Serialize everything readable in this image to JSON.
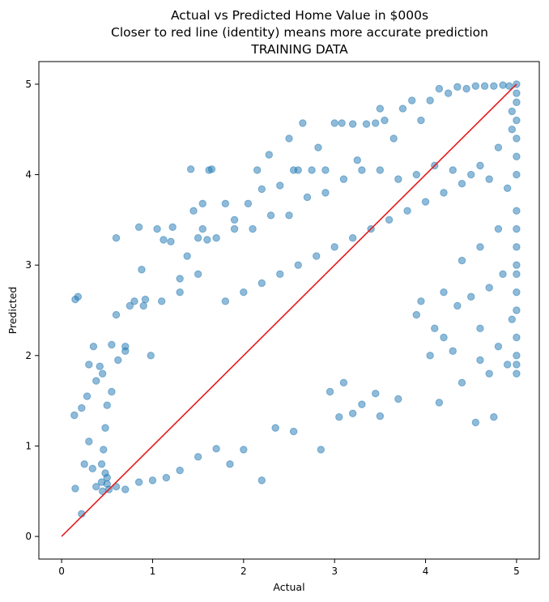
{
  "chart_data": {
    "type": "scatter",
    "title": [
      "Actual vs Predicted Home Value in $000s",
      "Closer to red line (identity) means more accurate prediction",
      "TRAINING DATA"
    ],
    "xlabel": "Actual",
    "ylabel": "Predicted",
    "xlim": [
      -0.25,
      5.25
    ],
    "ylim": [
      -0.25,
      5.25
    ],
    "xticks": [
      0,
      1,
      2,
      3,
      4,
      5
    ],
    "yticks": [
      0,
      1,
      2,
      3,
      4,
      5
    ],
    "grid": false,
    "point_color": "#1f77b4",
    "point_alpha": 0.5,
    "line_color": "#e41a1c",
    "identity_line": {
      "x": [
        0,
        5
      ],
      "y": [
        0,
        5
      ]
    },
    "series": [
      {
        "type": "scatter",
        "points": [
          [
            0.15,
            2.62
          ],
          [
            0.18,
            2.65
          ],
          [
            0.22,
            0.25
          ],
          [
            0.15,
            0.53
          ],
          [
            0.25,
            0.8
          ],
          [
            0.28,
            1.55
          ],
          [
            0.22,
            1.42
          ],
          [
            0.14,
            1.34
          ],
          [
            0.3,
            1.9
          ],
          [
            0.35,
            2.1
          ],
          [
            0.38,
            1.72
          ],
          [
            0.42,
            1.88
          ],
          [
            0.45,
            1.8
          ],
          [
            0.3,
            1.05
          ],
          [
            0.34,
            0.75
          ],
          [
            0.38,
            0.55
          ],
          [
            0.44,
            0.6
          ],
          [
            0.48,
            0.7
          ],
          [
            0.52,
            0.52
          ],
          [
            0.6,
            3.3
          ],
          [
            0.6,
            2.45
          ],
          [
            0.55,
            2.12
          ],
          [
            0.7,
            2.05
          ],
          [
            0.75,
            2.55
          ],
          [
            0.8,
            2.6
          ],
          [
            0.85,
            3.42
          ],
          [
            0.88,
            2.95
          ],
          [
            0.92,
            2.62
          ],
          [
            0.98,
            2.0
          ],
          [
            1.05,
            3.4
          ],
          [
            1.12,
            3.28
          ],
          [
            1.2,
            3.26
          ],
          [
            1.22,
            3.42
          ],
          [
            1.3,
            2.85
          ],
          [
            1.38,
            3.1
          ],
          [
            1.45,
            3.6
          ],
          [
            1.5,
            3.3
          ],
          [
            1.55,
            3.4
          ],
          [
            1.6,
            3.28
          ],
          [
            1.62,
            4.05
          ],
          [
            1.65,
            4.06
          ],
          [
            1.42,
            4.06
          ],
          [
            1.55,
            3.68
          ],
          [
            1.8,
            3.68
          ],
          [
            1.9,
            3.5
          ],
          [
            2.05,
            3.68
          ],
          [
            2.15,
            4.05
          ],
          [
            2.2,
            3.84
          ],
          [
            2.28,
            4.22
          ],
          [
            2.4,
            3.88
          ],
          [
            2.5,
            4.4
          ],
          [
            2.55,
            4.05
          ],
          [
            2.6,
            4.05
          ],
          [
            2.65,
            4.57
          ],
          [
            2.75,
            4.05
          ],
          [
            2.82,
            4.3
          ],
          [
            2.9,
            4.05
          ],
          [
            3.0,
            4.57
          ],
          [
            3.08,
            4.57
          ],
          [
            3.2,
            4.56
          ],
          [
            3.25,
            4.16
          ],
          [
            3.35,
            4.56
          ],
          [
            3.45,
            4.57
          ],
          [
            3.5,
            4.73
          ],
          [
            3.55,
            4.6
          ],
          [
            3.65,
            4.4
          ],
          [
            3.75,
            4.73
          ],
          [
            3.85,
            4.82
          ],
          [
            3.95,
            4.6
          ],
          [
            4.05,
            4.82
          ],
          [
            4.15,
            4.95
          ],
          [
            4.25,
            4.9
          ],
          [
            4.35,
            4.97
          ],
          [
            4.45,
            4.95
          ],
          [
            4.55,
            4.98
          ],
          [
            4.65,
            4.98
          ],
          [
            4.75,
            4.98
          ],
          [
            4.85,
            4.99
          ],
          [
            4.92,
            4.98
          ],
          [
            5.0,
            5.0
          ],
          [
            4.55,
            1.26
          ],
          [
            4.75,
            1.32
          ],
          [
            4.15,
            1.48
          ],
          [
            4.4,
            1.7
          ],
          [
            4.6,
            1.95
          ],
          [
            4.7,
            1.8
          ],
          [
            5.0,
            1.8
          ],
          [
            4.9,
            1.9
          ],
          [
            4.8,
            2.1
          ],
          [
            4.95,
            2.4
          ],
          [
            4.6,
            2.3
          ],
          [
            4.35,
            2.55
          ],
          [
            4.5,
            2.65
          ],
          [
            4.7,
            2.75
          ],
          [
            4.85,
            2.9
          ],
          [
            5.0,
            2.9
          ],
          [
            2.85,
            0.96
          ],
          [
            2.55,
            1.16
          ],
          [
            2.35,
            1.2
          ],
          [
            2.2,
            0.62
          ],
          [
            2.0,
            0.96
          ],
          [
            1.85,
            0.8
          ],
          [
            1.7,
            0.97
          ],
          [
            1.5,
            0.88
          ],
          [
            1.3,
            0.73
          ],
          [
            1.15,
            0.65
          ],
          [
            1.0,
            0.62
          ],
          [
            0.85,
            0.6
          ],
          [
            0.7,
            0.52
          ],
          [
            0.6,
            0.55
          ],
          [
            0.5,
            0.58
          ],
          [
            0.45,
            0.5
          ],
          [
            3.5,
            1.33
          ],
          [
            3.3,
            1.46
          ],
          [
            3.2,
            1.36
          ],
          [
            3.05,
            1.32
          ],
          [
            2.95,
            1.6
          ],
          [
            3.1,
            1.7
          ],
          [
            3.7,
            1.52
          ],
          [
            3.45,
            1.58
          ],
          [
            3.9,
            2.45
          ],
          [
            4.1,
            2.3
          ],
          [
            4.2,
            2.2
          ],
          [
            4.3,
            2.05
          ],
          [
            4.05,
            2.0
          ],
          [
            3.95,
            2.6
          ],
          [
            4.2,
            2.7
          ],
          [
            4.4,
            3.05
          ],
          [
            4.6,
            3.2
          ],
          [
            4.8,
            3.4
          ],
          [
            5.0,
            3.6
          ],
          [
            4.9,
            3.85
          ],
          [
            4.7,
            3.95
          ],
          [
            4.5,
            4.0
          ],
          [
            4.3,
            4.05
          ],
          [
            4.1,
            4.1
          ],
          [
            3.9,
            4.0
          ],
          [
            3.7,
            3.95
          ],
          [
            3.5,
            4.05
          ],
          [
            3.3,
            4.05
          ],
          [
            3.1,
            3.95
          ],
          [
            2.9,
            3.8
          ],
          [
            2.7,
            3.75
          ],
          [
            2.5,
            3.55
          ],
          [
            2.3,
            3.55
          ],
          [
            2.1,
            3.4
          ],
          [
            1.9,
            3.4
          ],
          [
            1.7,
            3.3
          ],
          [
            1.5,
            2.9
          ],
          [
            1.3,
            2.7
          ],
          [
            1.1,
            2.6
          ],
          [
            0.9,
            2.55
          ],
          [
            0.7,
            2.1
          ],
          [
            0.62,
            1.95
          ],
          [
            0.55,
            1.6
          ],
          [
            0.5,
            1.45
          ],
          [
            0.48,
            1.2
          ],
          [
            0.46,
            0.96
          ],
          [
            0.44,
            0.8
          ],
          [
            0.5,
            0.65
          ],
          [
            1.8,
            2.6
          ],
          [
            2.0,
            2.7
          ],
          [
            2.2,
            2.8
          ],
          [
            2.4,
            2.9
          ],
          [
            2.6,
            3.0
          ],
          [
            2.8,
            3.1
          ],
          [
            3.0,
            3.2
          ],
          [
            3.2,
            3.3
          ],
          [
            3.4,
            3.4
          ],
          [
            3.6,
            3.5
          ],
          [
            3.8,
            3.6
          ],
          [
            4.0,
            3.7
          ],
          [
            4.2,
            3.8
          ],
          [
            4.4,
            3.9
          ],
          [
            4.6,
            4.1
          ],
          [
            4.8,
            4.3
          ],
          [
            5.0,
            4.6
          ],
          [
            5.0,
            4.4
          ],
          [
            5.0,
            4.2
          ],
          [
            5.0,
            4.0
          ],
          [
            5.0,
            3.4
          ],
          [
            5.0,
            3.2
          ],
          [
            5.0,
            3.0
          ],
          [
            5.0,
            2.7
          ],
          [
            5.0,
            2.5
          ],
          [
            5.0,
            2.2
          ],
          [
            5.0,
            2.0
          ],
          [
            5.0,
            1.9
          ],
          [
            5.0,
            4.8
          ],
          [
            5.0,
            4.9
          ],
          [
            4.95,
            4.7
          ],
          [
            4.95,
            4.5
          ]
        ]
      }
    ]
  }
}
